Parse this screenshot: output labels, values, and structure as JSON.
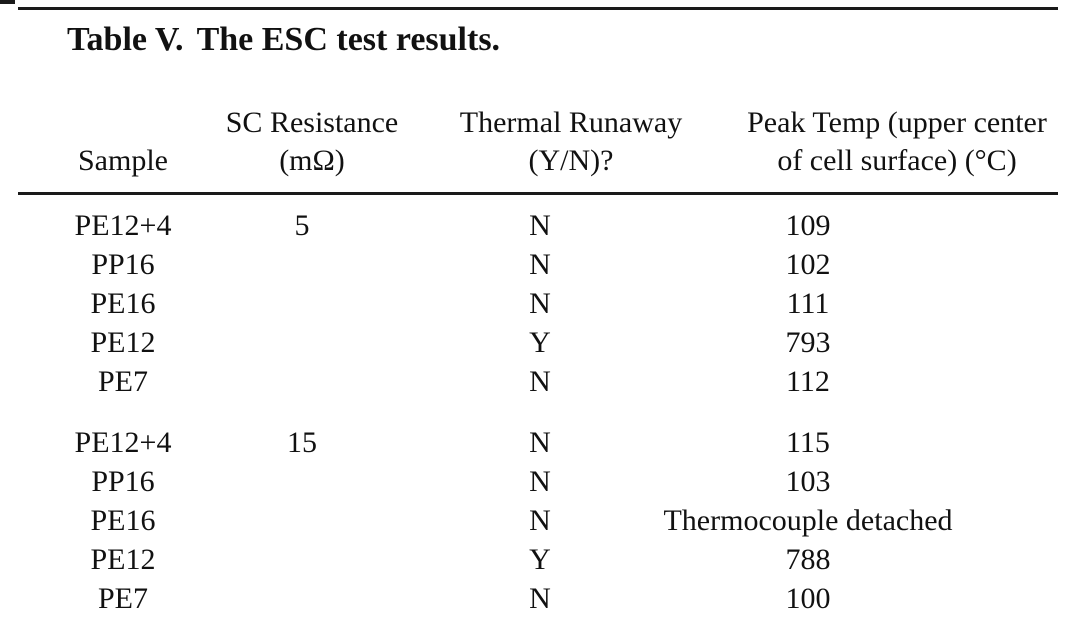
{
  "table": {
    "caption": {
      "label": "Table V.",
      "title": "The ESC test results."
    },
    "columns": {
      "sample": {
        "line1": "",
        "line2": "Sample"
      },
      "resistance": {
        "line1": "SC Resistance",
        "line2": "(mΩ)"
      },
      "runaway": {
        "line1": "Thermal Runaway",
        "line2": "(Y/N)?"
      },
      "peak_temp": {
        "line1": "Peak Temp (upper center",
        "line2": "of cell surface) (°C)"
      }
    },
    "rows": [
      {
        "sample": "PE12+4",
        "resistance": "5",
        "runaway": "N",
        "peak_temp": "109"
      },
      {
        "sample": "PP16",
        "resistance": "",
        "runaway": "N",
        "peak_temp": "102"
      },
      {
        "sample": "PE16",
        "resistance": "",
        "runaway": "N",
        "peak_temp": "111"
      },
      {
        "sample": "PE12",
        "resistance": "",
        "runaway": "Y",
        "peak_temp": "793"
      },
      {
        "sample": "PE7",
        "resistance": "",
        "runaway": "N",
        "peak_temp": "112"
      },
      {
        "sample": "PE12+4",
        "resistance": "15",
        "runaway": "N",
        "peak_temp": "115"
      },
      {
        "sample": "PP16",
        "resistance": "",
        "runaway": "N",
        "peak_temp": "103"
      },
      {
        "sample": "PE16",
        "resistance": "",
        "runaway": "N",
        "peak_temp": "Thermocouple detached"
      },
      {
        "sample": "PE12",
        "resistance": "",
        "runaway": "Y",
        "peak_temp": "788"
      },
      {
        "sample": "PE7",
        "resistance": "",
        "runaway": "N",
        "peak_temp": "100"
      }
    ],
    "colors": {
      "text": "#111111",
      "rule": "#1a1a1a",
      "background": "#ffffff"
    }
  }
}
